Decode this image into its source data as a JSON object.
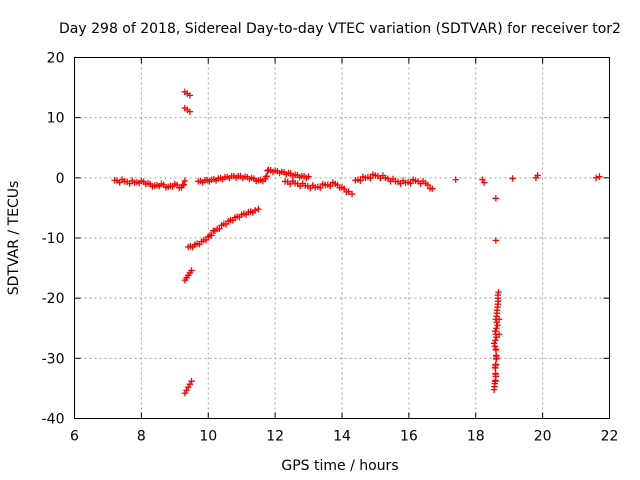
{
  "chart_data": {
    "type": "scatter",
    "title": "Day 298 of 2018, Sidereal Day-to-day VTEC variation (SDTVAR) for receiver tor2",
    "xlabel": "GPS time / hours",
    "ylabel": "SDTVAR / TECUs",
    "xlim": [
      6,
      22
    ],
    "ylim": [
      -40,
      20
    ],
    "xticks": [
      "6",
      "8",
      "10",
      "12",
      "14",
      "16",
      "18",
      "20",
      "22"
    ],
    "yticks": [
      "20",
      "10",
      "0",
      "-10",
      "-20",
      "-30",
      "-40"
    ],
    "grid": true,
    "marker": "plus",
    "color": "#ff0000",
    "series": [
      {
        "name": "main-band-morning",
        "points": [
          [
            7.2,
            -0.4
          ],
          [
            7.5,
            -0.6
          ],
          [
            7.8,
            -0.8
          ],
          [
            8.0,
            -0.5
          ],
          [
            8.2,
            -0.9
          ],
          [
            8.4,
            -1.3
          ],
          [
            8.6,
            -1.0
          ],
          [
            8.8,
            -1.5
          ],
          [
            9.0,
            -1.0
          ],
          [
            9.2,
            -1.6
          ],
          [
            9.3,
            -0.5
          ]
        ]
      },
      {
        "name": "main-band-midday",
        "points": [
          [
            9.7,
            -0.6
          ],
          [
            9.9,
            -0.4
          ],
          [
            10.1,
            -0.3
          ],
          [
            10.3,
            -0.1
          ],
          [
            10.5,
            0.1
          ],
          [
            10.7,
            0.3
          ],
          [
            10.9,
            0.3
          ],
          [
            11.1,
            0.2
          ],
          [
            11.3,
            0.0
          ],
          [
            11.5,
            -0.4
          ],
          [
            11.7,
            -0.2
          ],
          [
            11.8,
            1.3
          ],
          [
            12.0,
            1.2
          ],
          [
            12.2,
            1.0
          ],
          [
            12.4,
            0.8
          ],
          [
            12.6,
            0.5
          ],
          [
            12.8,
            0.3
          ],
          [
            13.0,
            0.2
          ],
          [
            12.3,
            -0.6
          ],
          [
            12.6,
            -0.9
          ],
          [
            12.9,
            -1.3
          ],
          [
            13.2,
            -1.6
          ],
          [
            13.5,
            -1.2
          ],
          [
            13.8,
            -1.0
          ],
          [
            14.0,
            -1.6
          ],
          [
            14.2,
            -2.3
          ],
          [
            14.3,
            -2.7
          ]
        ]
      },
      {
        "name": "main-band-afternoon",
        "points": [
          [
            14.4,
            -0.4
          ],
          [
            14.7,
            0.0
          ],
          [
            15.0,
            0.4
          ],
          [
            15.3,
            0.0
          ],
          [
            15.6,
            -0.6
          ],
          [
            15.9,
            -0.8
          ],
          [
            16.2,
            -0.5
          ],
          [
            16.5,
            -0.9
          ],
          [
            16.7,
            -1.8
          ]
        ]
      },
      {
        "name": "isolated-near-zero",
        "points": [
          [
            17.4,
            -0.3
          ],
          [
            18.2,
            -0.3
          ],
          [
            18.25,
            -0.8
          ],
          [
            19.1,
            -0.1
          ],
          [
            19.8,
            0.0
          ],
          [
            19.85,
            0.4
          ],
          [
            21.6,
            0.0
          ],
          [
            21.7,
            0.2
          ]
        ]
      },
      {
        "name": "recovery-curve",
        "points": [
          [
            9.4,
            -11.5
          ],
          [
            9.6,
            -11.1
          ],
          [
            9.8,
            -10.6
          ],
          [
            10.0,
            -9.8
          ],
          [
            10.2,
            -8.8
          ],
          [
            10.4,
            -7.9
          ],
          [
            10.6,
            -7.2
          ],
          [
            10.8,
            -6.6
          ],
          [
            11.0,
            -6.1
          ],
          [
            11.2,
            -5.7
          ],
          [
            11.4,
            -5.4
          ],
          [
            11.5,
            -5.2
          ]
        ]
      },
      {
        "name": "positive-outliers",
        "points": [
          [
            9.3,
            14.3
          ],
          [
            9.45,
            13.7
          ],
          [
            9.3,
            11.6
          ],
          [
            9.45,
            11.0
          ]
        ]
      },
      {
        "name": "cluster-minus-16",
        "points": [
          [
            9.3,
            -17.0
          ],
          [
            9.35,
            -16.6
          ],
          [
            9.4,
            -16.2
          ],
          [
            9.45,
            -15.8
          ],
          [
            9.5,
            -15.4
          ]
        ]
      },
      {
        "name": "cluster-minus-35",
        "points": [
          [
            9.3,
            -35.8
          ],
          [
            9.35,
            -35.3
          ],
          [
            9.4,
            -34.8
          ],
          [
            9.45,
            -34.3
          ],
          [
            9.5,
            -33.8
          ]
        ]
      },
      {
        "name": "dropout-18-6",
        "points": [
          [
            18.6,
            -3.4
          ],
          [
            18.6,
            -10.4
          ],
          [
            18.55,
            -35.2
          ],
          [
            18.57,
            -34.2
          ],
          [
            18.6,
            -33.0
          ],
          [
            18.58,
            -31.5
          ],
          [
            18.62,
            -30.0
          ],
          [
            18.6,
            -28.5
          ],
          [
            18.55,
            -27.5
          ],
          [
            18.62,
            -26.5
          ],
          [
            18.58,
            -25.5
          ],
          [
            18.65,
            -24.5
          ],
          [
            18.6,
            -23.5
          ],
          [
            18.63,
            -22.5
          ],
          [
            18.65,
            -21.5
          ],
          [
            18.67,
            -20.5
          ],
          [
            18.66,
            -19.5
          ],
          [
            18.68,
            -19.0
          ],
          [
            18.7,
            -23.5
          ],
          [
            18.7,
            -26.0
          ]
        ]
      }
    ]
  }
}
